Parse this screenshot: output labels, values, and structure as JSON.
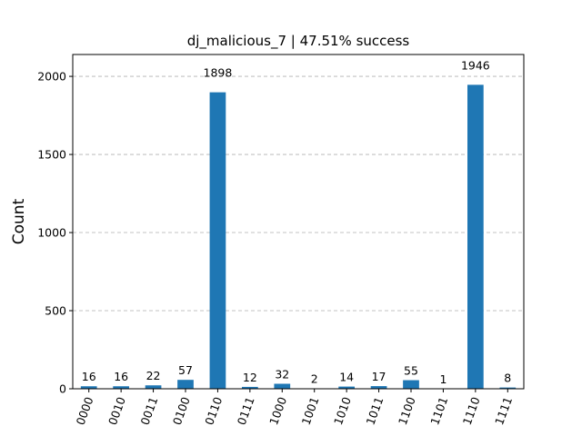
{
  "chart_data": {
    "type": "bar",
    "title": "dj_malicious_7 | 47.51% success",
    "xlabel": "",
    "ylabel": "Count",
    "ylim": [
      0,
      2140
    ],
    "yticks": [
      0,
      500,
      1000,
      1500,
      2000
    ],
    "grid": "y-dashed",
    "bar_color": "#1f77b4",
    "categories": [
      "0000",
      "0010",
      "0011",
      "0100",
      "0110",
      "0111",
      "1000",
      "1001",
      "1010",
      "1011",
      "1100",
      "1101",
      "1110",
      "1111"
    ],
    "values": [
      16,
      16,
      22,
      57,
      1898,
      12,
      32,
      2,
      14,
      17,
      55,
      1,
      1946,
      8
    ]
  }
}
